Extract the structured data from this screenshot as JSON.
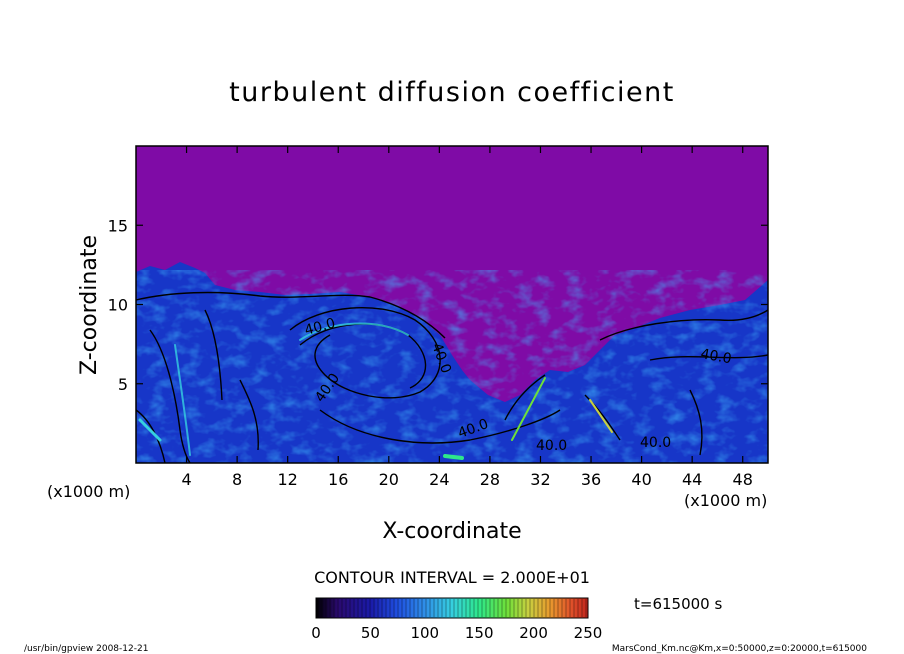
{
  "chart_data": {
    "type": "heatmap",
    "title": "turbulent diffusion coefficient",
    "xlabel": "X-coordinate",
    "ylabel": "Z-coordinate",
    "x_unit": "(x1000 m)",
    "y_unit": "(x1000 m)",
    "xlim": [
      0,
      50
    ],
    "ylim": [
      0,
      20
    ],
    "x_ticks": [
      4,
      8,
      12,
      16,
      20,
      24,
      28,
      32,
      36,
      40,
      44,
      48
    ],
    "y_ticks": [
      5,
      10,
      15
    ],
    "contour_interval_text": "CONTOUR INTERVAL = 2.000E+01",
    "contour_labels": [
      "40.0",
      "40.0",
      "40.0",
      "40.0",
      "40.0",
      "40.0",
      "40.0"
    ],
    "colorbar": {
      "min": 0,
      "max": 250,
      "ticks": [
        0,
        50,
        100,
        150,
        200,
        250
      ],
      "colors": [
        "#000000",
        "#2a0a6e",
        "#1a1aa8",
        "#1f4fe0",
        "#2f8fe8",
        "#36d0e0",
        "#2ee88a",
        "#6ee03a",
        "#c8d040",
        "#e89a2e",
        "#e0502a",
        "#c0241c"
      ]
    },
    "background_color": "#7f0ba6",
    "field_color": "#1736c8",
    "time_text": "t=615000 s"
  },
  "footer": {
    "left": "/usr/bin/gpview   2008-12-21",
    "right": "MarsCond_Km.nc@Km,x=0:50000,z=0:20000,t=615000"
  }
}
